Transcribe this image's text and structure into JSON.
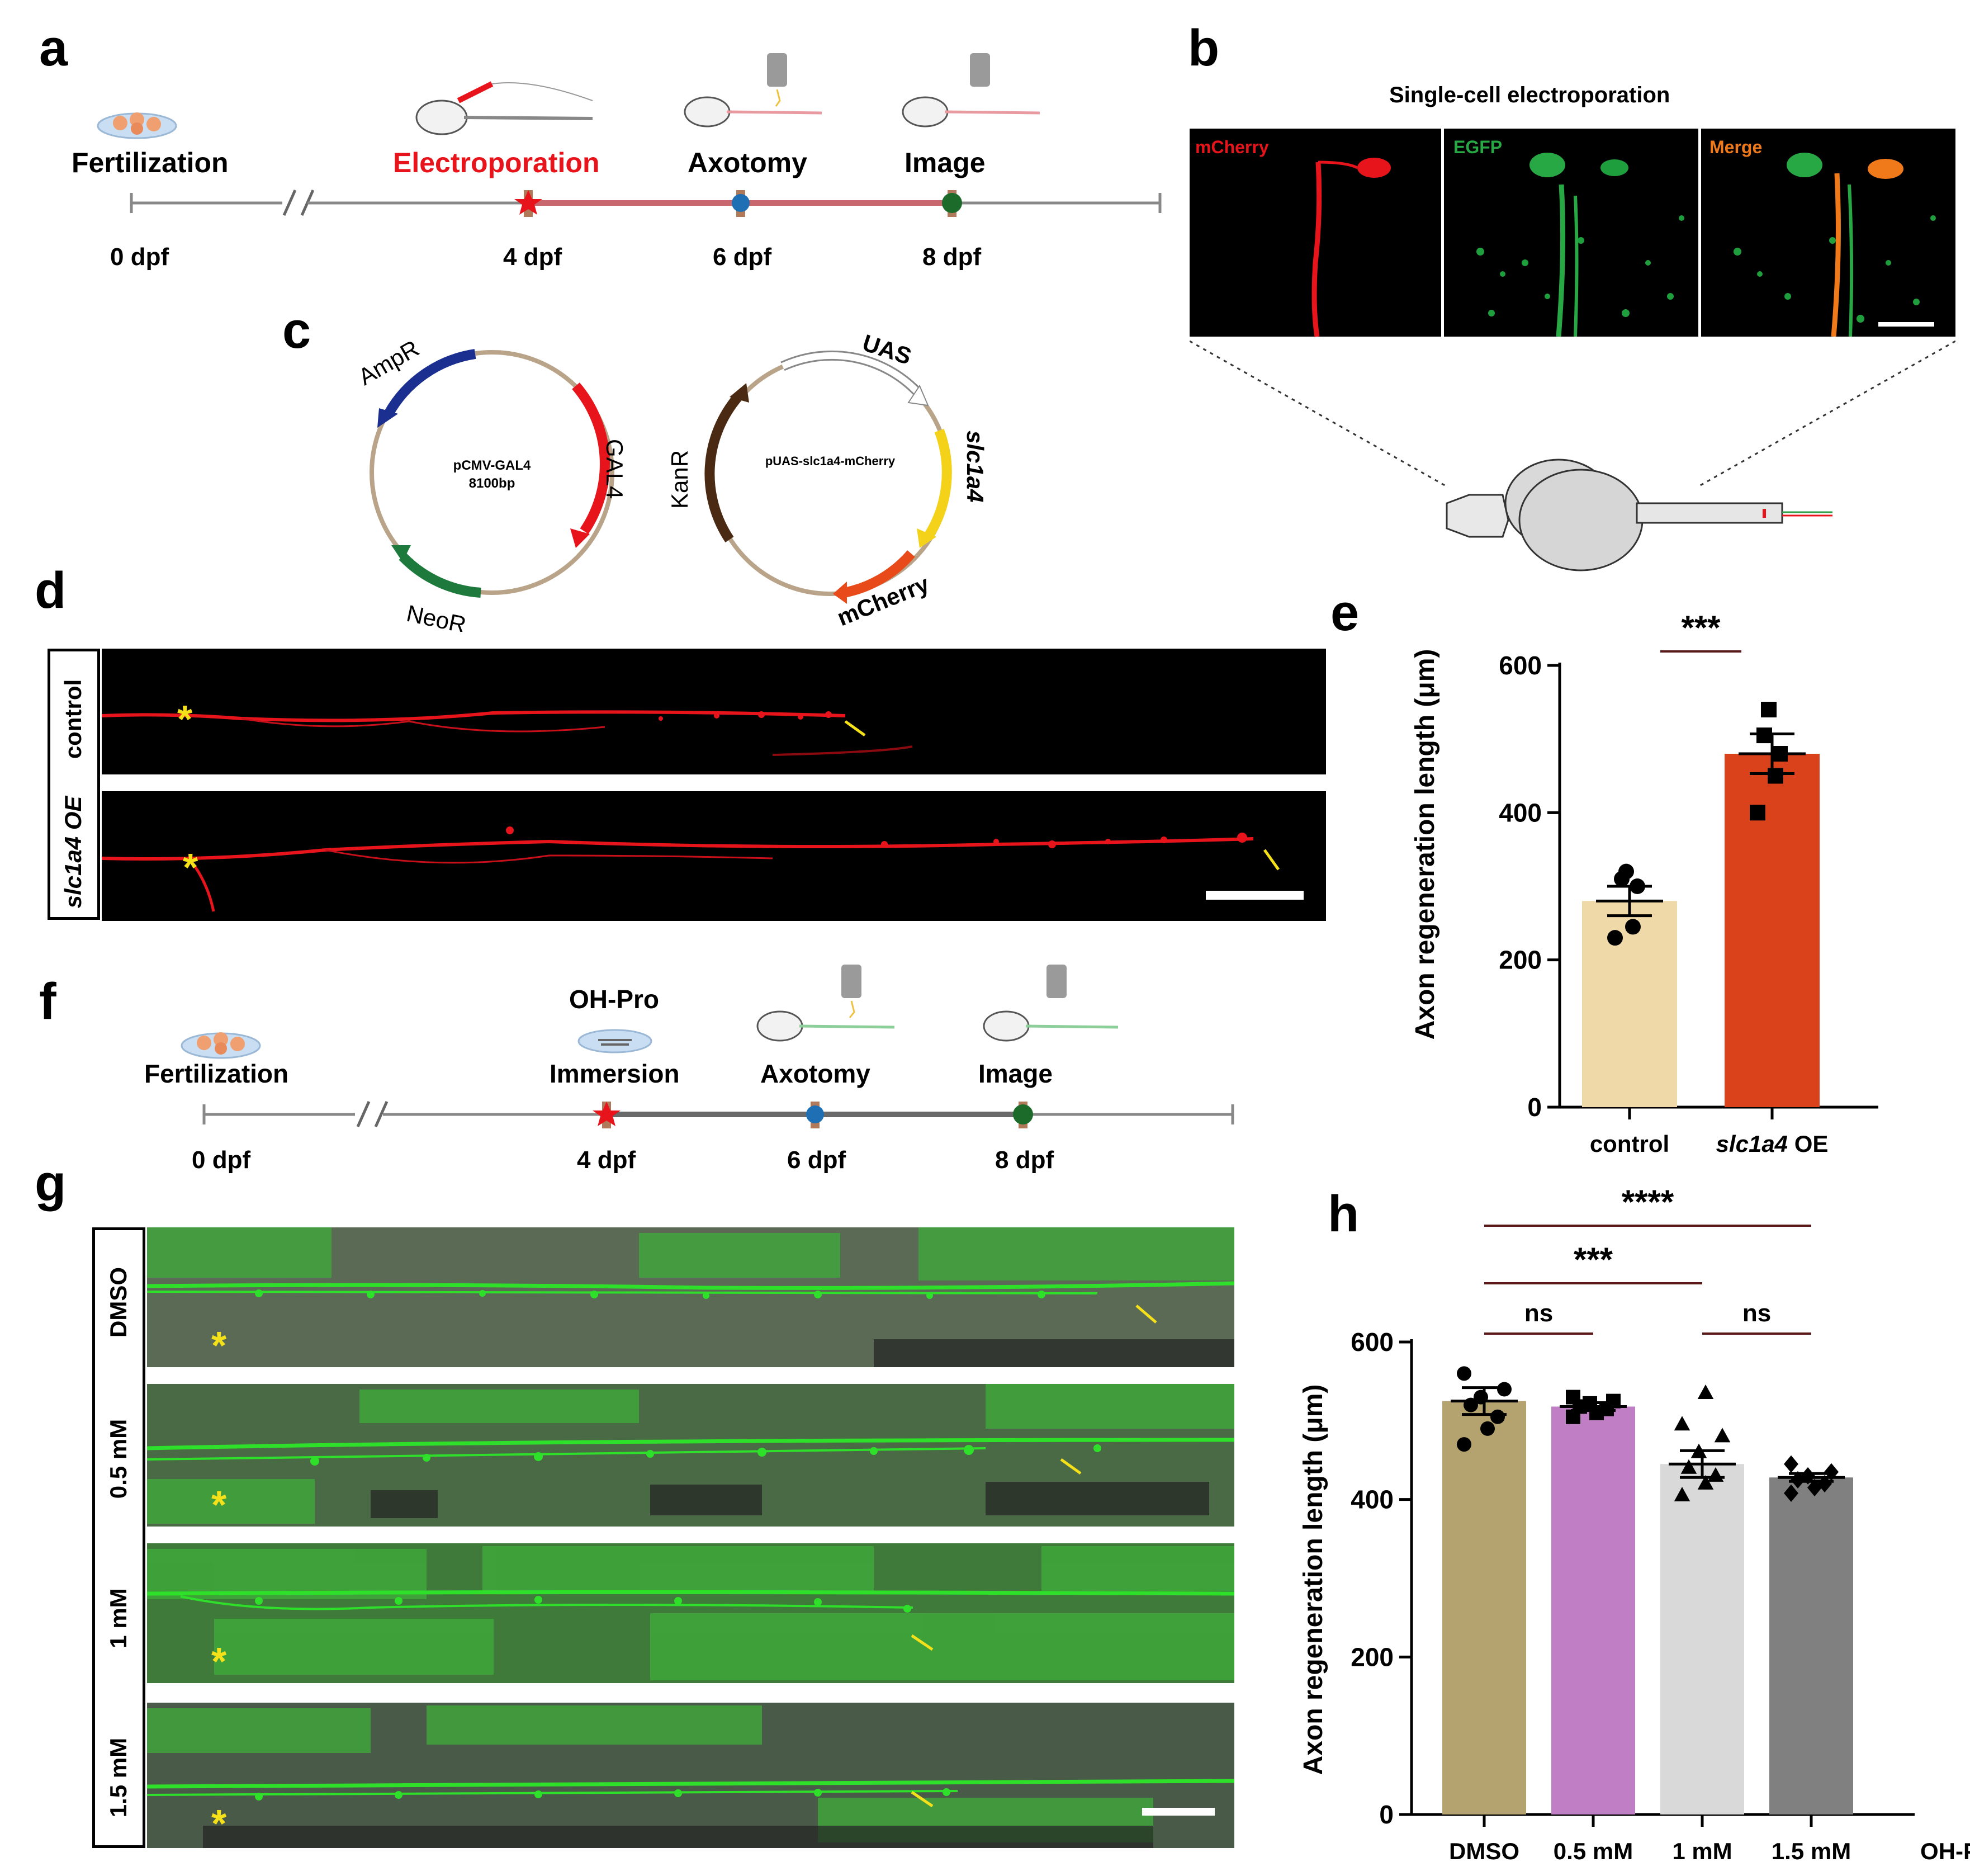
{
  "panel_labels": {
    "a": "a",
    "b": "b",
    "c": "c",
    "d": "d",
    "e": "e",
    "f": "f",
    "g": "g",
    "h": "h"
  },
  "timeline_a": {
    "stages": [
      "Fertilization",
      "Electroporation",
      "Axotomy",
      "Image"
    ],
    "days": [
      "0 dpf",
      "4 dpf",
      "6 dpf",
      "8 dpf"
    ],
    "colors": {
      "electroporation": "#e8141b",
      "axotomy_dot": "#1f6fb5",
      "image_dot": "#1c6b2a",
      "line": "#c9676e"
    }
  },
  "panel_b": {
    "title": "Single-cell electroporation",
    "channels": [
      "mCherry",
      "EGFP",
      "Merge"
    ],
    "channel_colors": [
      "#e8141b",
      "#27a844",
      "#f07a1a"
    ]
  },
  "panel_c": {
    "plasmid1": {
      "name": "pCMV-GAL4",
      "size": "8100bp",
      "features": [
        "AmpR",
        "GAL4",
        "NeoR"
      ]
    },
    "plasmid2": {
      "name": "pUAS-slc1a4-mCherry",
      "features": [
        "UAS",
        "slc1a4",
        "mCherry",
        "KanR"
      ]
    }
  },
  "panel_d": {
    "rows": [
      "control",
      "slc1a4 OE"
    ],
    "asterisk": "*"
  },
  "panel_f": {
    "drug": "OH-Pro",
    "stages": [
      "Fertilization",
      "Immersion",
      "Axotomy",
      "Image"
    ],
    "days": [
      "0 dpf",
      "4 dpf",
      "6 dpf",
      "8 dpf"
    ]
  },
  "panel_g": {
    "rows": [
      "DMSO",
      "0.5 mM",
      "1 mM",
      "1.5 mM"
    ],
    "asterisk": "*"
  },
  "chart_data": [
    {
      "type": "bar",
      "panel": "e",
      "categories": [
        "control",
        "slc1a4 OE"
      ],
      "values": [
        280,
        480
      ],
      "sem": [
        20,
        27
      ],
      "points": [
        [
          230,
          245,
          300,
          310,
          320
        ],
        [
          400,
          450,
          480,
          505,
          540
        ]
      ],
      "colors": [
        "#f0d9a9",
        "#d9421a"
      ],
      "ylabel": "Axon regeneration length (μm)",
      "ylim": [
        0,
        600
      ],
      "yticks": [
        0,
        200,
        400,
        600
      ],
      "significance": [
        {
          "pair": [
            "control",
            "slc1a4 OE"
          ],
          "label": "***"
        }
      ]
    },
    {
      "type": "bar",
      "panel": "h",
      "categories": [
        "DMSO",
        "0.5 mM",
        "1 mM",
        "1.5 mM"
      ],
      "xlabel_suffix": "OH-Pro",
      "values": [
        525,
        518,
        445,
        428
      ],
      "sem": [
        17,
        5,
        17,
        5
      ],
      "points": [
        [
          470,
          490,
          505,
          520,
          530,
          540,
          560
        ],
        [
          505,
          510,
          515,
          518,
          522,
          525,
          530
        ],
        [
          405,
          420,
          430,
          440,
          460,
          480,
          495,
          535
        ],
        [
          408,
          415,
          420,
          425,
          430,
          435,
          445
        ]
      ],
      "markers": [
        "circle",
        "square",
        "triangle",
        "diamond"
      ],
      "colors": [
        "#b5a36f",
        "#c07ec4",
        "#d9d9d9",
        "#808080"
      ],
      "ylabel": "Axon regeneration length (μm)",
      "ylim": [
        0,
        600
      ],
      "yticks": [
        0,
        200,
        400,
        600
      ],
      "significance": [
        {
          "pair": [
            "DMSO",
            "1.5 mM"
          ],
          "label": "****"
        },
        {
          "pair": [
            "DMSO",
            "1 mM"
          ],
          "label": "***"
        },
        {
          "pair": [
            "DMSO",
            "0.5 mM"
          ],
          "label": "ns"
        },
        {
          "pair": [
            "1 mM",
            "1.5 mM"
          ],
          "label": "ns"
        }
      ]
    }
  ]
}
